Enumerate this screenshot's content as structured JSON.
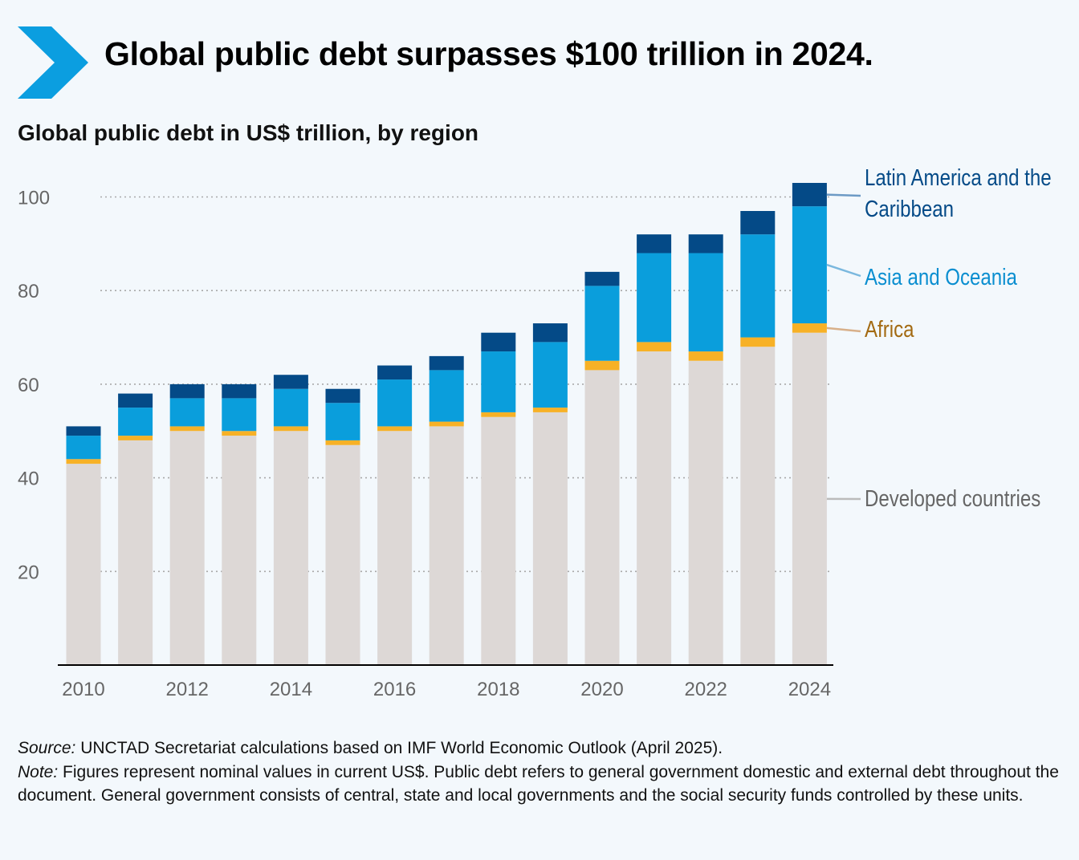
{
  "header": {
    "title": "Global public debt surpasses $100 trillion in 2024.",
    "icon": "chevron-right-icon",
    "accent_color": "#0b9ee0"
  },
  "subtitle": "Global public debt in US$ trillion, by region",
  "chart_data": {
    "type": "bar",
    "stacked": true,
    "title": "Global public debt in US$ trillion, by region",
    "xlabel": "",
    "ylabel": "",
    "ylim": [
      0,
      105
    ],
    "yticks": [
      20,
      40,
      60,
      80,
      100
    ],
    "x_tick_labels": [
      "2010",
      "2012",
      "2014",
      "2016",
      "2018",
      "2020",
      "2022",
      "2024"
    ],
    "categories": [
      "2010",
      "2011",
      "2012",
      "2013",
      "2014",
      "2015",
      "2016",
      "2017",
      "2018",
      "2019",
      "2020",
      "2021",
      "2022",
      "2023",
      "2024"
    ],
    "grid": true,
    "series": [
      {
        "name": "Developed countries",
        "color": "#ddd8d6",
        "label_color": "#666666",
        "leader_color": "#bbbbbb",
        "values": [
          43,
          48,
          50,
          49,
          50,
          47,
          50,
          51,
          53,
          54,
          63,
          67,
          65,
          68,
          71
        ]
      },
      {
        "name": "Africa",
        "color": "#f7b126",
        "label_color": "#a36a12",
        "leader_color": "#d8b08a",
        "values": [
          1,
          1,
          1,
          1,
          1,
          1,
          1,
          1,
          1,
          1,
          2,
          2,
          2,
          2,
          2
        ]
      },
      {
        "name": "Asia and Oceania",
        "color": "#0a9edc",
        "label_color": "#0a8ed0",
        "leader_color": "#7ab8de",
        "values": [
          5,
          6,
          6,
          7,
          8,
          8,
          10,
          11,
          13,
          14,
          16,
          19,
          21,
          22,
          25
        ]
      },
      {
        "name": "Latin America and the Caribbean",
        "color": "#044a87",
        "label_color": "#044a87",
        "leader_color": "#6c9ac5",
        "values": [
          2,
          3,
          3,
          3,
          3,
          3,
          3,
          3,
          4,
          4,
          3,
          4,
          4,
          5,
          5
        ]
      }
    ],
    "legend": [
      {
        "series": "Latin America and the Caribbean",
        "lines": [
          "Latin America and the",
          "Caribbean"
        ]
      },
      {
        "series": "Asia and Oceania",
        "lines": [
          "Asia and Oceania"
        ]
      },
      {
        "series": "Africa",
        "lines": [
          "Africa"
        ]
      },
      {
        "series": "Developed countries",
        "lines": [
          "Developed countries"
        ]
      }
    ],
    "legend_placement": "right"
  },
  "notes": {
    "source_label": "Source:",
    "source_text": " UNCTAD Secretariat calculations based on IMF World Economic Outlook (April 2025).",
    "note_label": "Note:",
    "note_text": " Figures represent nominal values in current US$. Public debt refers to general government domestic and external debt throughout the document. General government consists of central, state and local governments and the social security funds controlled by these units."
  }
}
